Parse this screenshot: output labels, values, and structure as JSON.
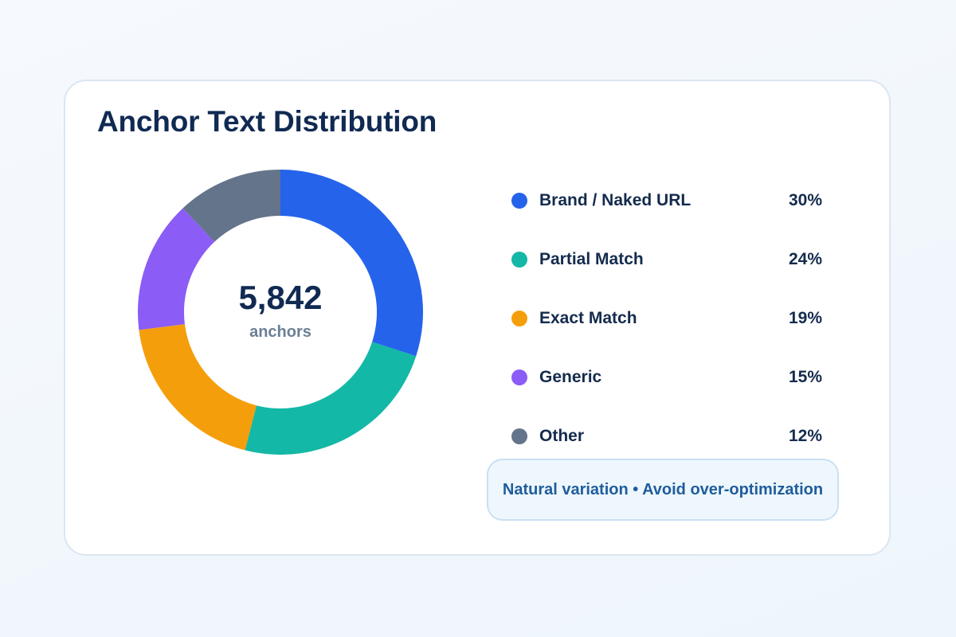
{
  "chart_data": {
    "type": "pie",
    "title": "Anchor Text Distribution",
    "center": {
      "value": "5,842",
      "label": "anchors"
    },
    "series": [
      {
        "name": "Brand / Naked URL",
        "value": 30,
        "display": "30%",
        "color": "#2563eb"
      },
      {
        "name": "Partial Match",
        "value": 24,
        "display": "24%",
        "color": "#14b8a6"
      },
      {
        "name": "Exact Match",
        "value": 19,
        "display": "19%",
        "color": "#f59e0b"
      },
      {
        "name": "Generic",
        "value": 15,
        "display": "15%",
        "color": "#8b5cf6"
      },
      {
        "name": "Other",
        "value": 12,
        "display": "12%",
        "color": "#64748b"
      }
    ],
    "legend_position": "right"
  },
  "note": "Natural variation • Avoid over-optimization"
}
